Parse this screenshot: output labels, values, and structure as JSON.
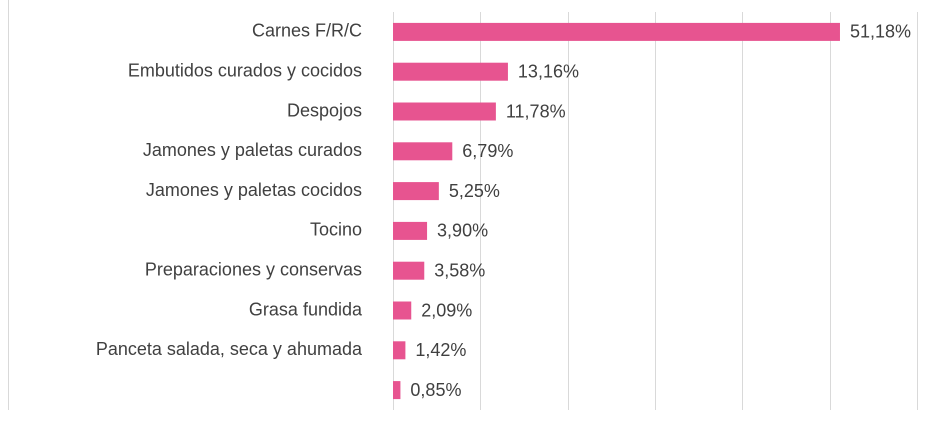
{
  "chart_data": {
    "type": "bar",
    "orientation": "horizontal",
    "categories": [
      "Carnes F/R/C",
      "Embutidos curados y cocidos",
      "Despojos",
      "Jamones y paletas curados",
      "Jamones y paletas cocidos",
      "Tocino",
      "Preparaciones y conservas",
      "Grasa fundida",
      "Panceta salada, seca y ahumada",
      null
    ],
    "values": [
      51.18,
      13.16,
      11.78,
      6.79,
      5.25,
      3.9,
      3.58,
      2.09,
      1.42,
      0.85
    ],
    "value_labels": [
      "51,18%",
      "13,16%",
      "11,78%",
      "6,79%",
      "5,25%",
      "3,90%",
      "3,58%",
      "2,09%",
      "1,42%",
      "0,85%"
    ],
    "color": "#e75490",
    "xlim": [
      0,
      60
    ],
    "xticks": [
      0,
      10,
      20,
      30,
      40,
      50,
      60
    ],
    "grid": true
  }
}
